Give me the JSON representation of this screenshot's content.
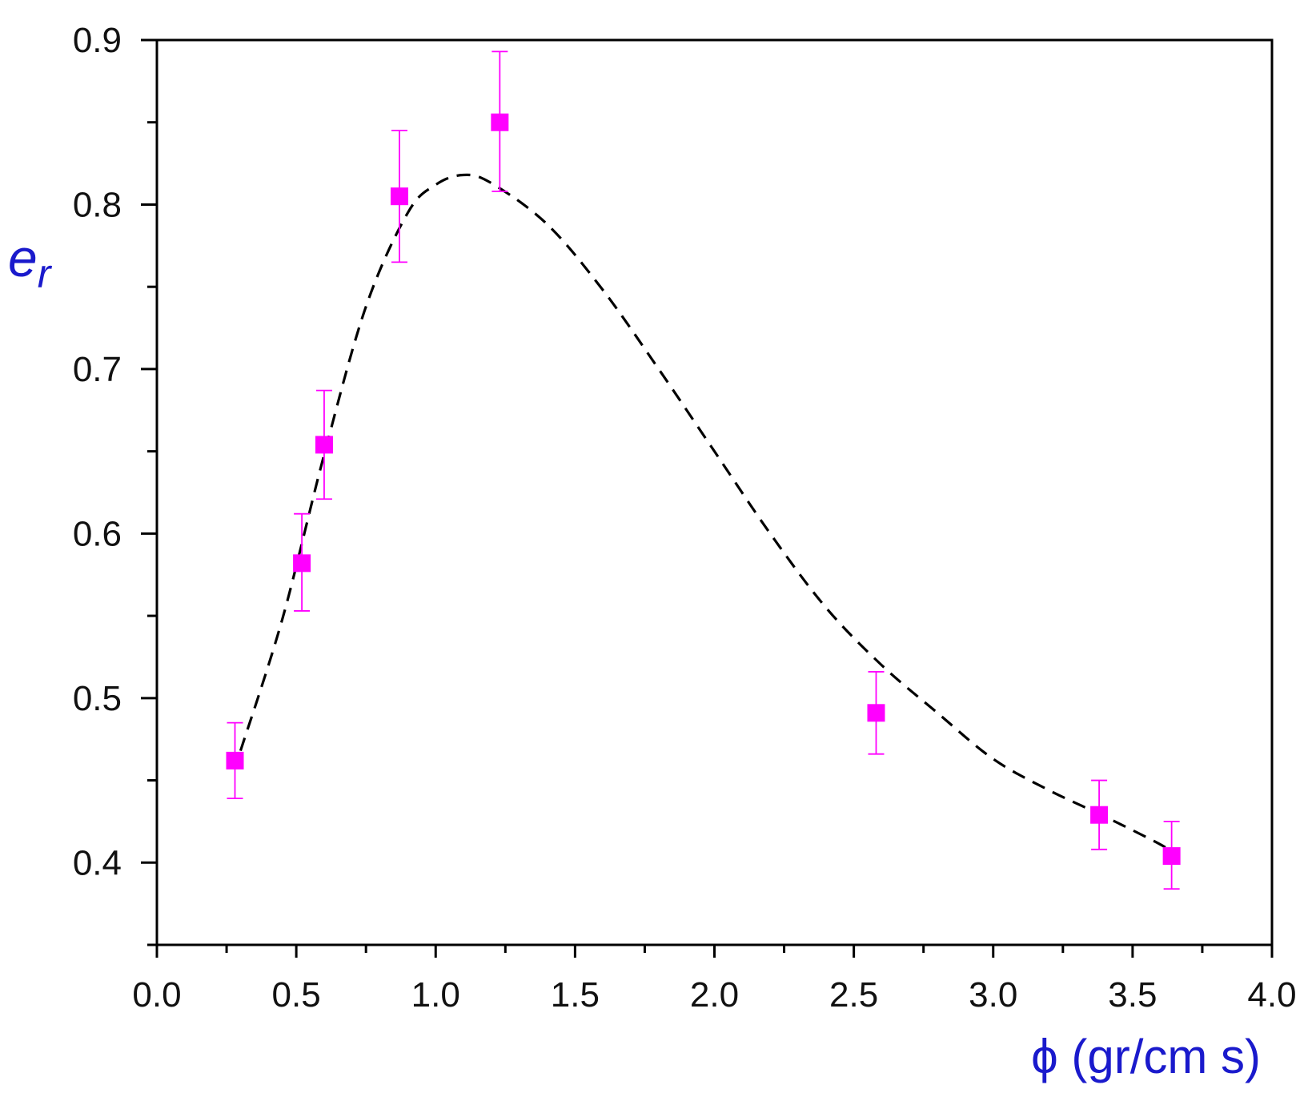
{
  "chart_data": {
    "type": "scatter",
    "xlabel": "ϕ (gr/cm s)",
    "ylabel": "e",
    "ylabel_subscript": "r",
    "xlim": [
      0.0,
      4.0
    ],
    "ylim": [
      0.35,
      0.9
    ],
    "x_ticks": [
      "0.0",
      "0.5",
      "1.0",
      "1.5",
      "2.0",
      "2.5",
      "3.0",
      "3.5",
      "4.0"
    ],
    "y_ticks": [
      "0.4",
      "0.5",
      "0.6",
      "0.7",
      "0.8",
      "0.9"
    ],
    "grid": false,
    "legend": "none",
    "series": [
      {
        "marker": "square",
        "color": "#ff00ff",
        "points": [
          {
            "x": 0.28,
            "y": 0.462,
            "err_low": 0.439,
            "err_high": 0.485
          },
          {
            "x": 0.52,
            "y": 0.582,
            "err_low": 0.553,
            "err_high": 0.612
          },
          {
            "x": 0.6,
            "y": 0.654,
            "err_low": 0.621,
            "err_high": 0.687
          },
          {
            "x": 0.87,
            "y": 0.805,
            "err_low": 0.765,
            "err_high": 0.845
          },
          {
            "x": 1.23,
            "y": 0.85,
            "err_low": 0.808,
            "err_high": 0.893
          },
          {
            "x": 2.58,
            "y": 0.491,
            "err_low": 0.466,
            "err_high": 0.516
          },
          {
            "x": 3.38,
            "y": 0.429,
            "err_low": 0.408,
            "err_high": 0.45
          },
          {
            "x": 3.64,
            "y": 0.404,
            "err_low": 0.384,
            "err_high": 0.425
          }
        ]
      },
      {
        "style": "dashed-line",
        "color": "#000000",
        "points": [
          {
            "x": 0.3,
            "y": 0.468
          },
          {
            "x": 0.45,
            "y": 0.548
          },
          {
            "x": 0.6,
            "y": 0.648
          },
          {
            "x": 0.75,
            "y": 0.738
          },
          {
            "x": 0.9,
            "y": 0.795
          },
          {
            "x": 1.0,
            "y": 0.812
          },
          {
            "x": 1.1,
            "y": 0.818
          },
          {
            "x": 1.2,
            "y": 0.813
          },
          {
            "x": 1.4,
            "y": 0.788
          },
          {
            "x": 1.6,
            "y": 0.748
          },
          {
            "x": 1.8,
            "y": 0.7
          },
          {
            "x": 2.0,
            "y": 0.65
          },
          {
            "x": 2.2,
            "y": 0.6
          },
          {
            "x": 2.4,
            "y": 0.555
          },
          {
            "x": 2.6,
            "y": 0.52
          },
          {
            "x": 2.8,
            "y": 0.491
          },
          {
            "x": 3.0,
            "y": 0.463
          },
          {
            "x": 3.2,
            "y": 0.444
          },
          {
            "x": 3.4,
            "y": 0.428
          },
          {
            "x": 3.6,
            "y": 0.411
          },
          {
            "x": 3.66,
            "y": 0.404
          }
        ]
      }
    ]
  }
}
